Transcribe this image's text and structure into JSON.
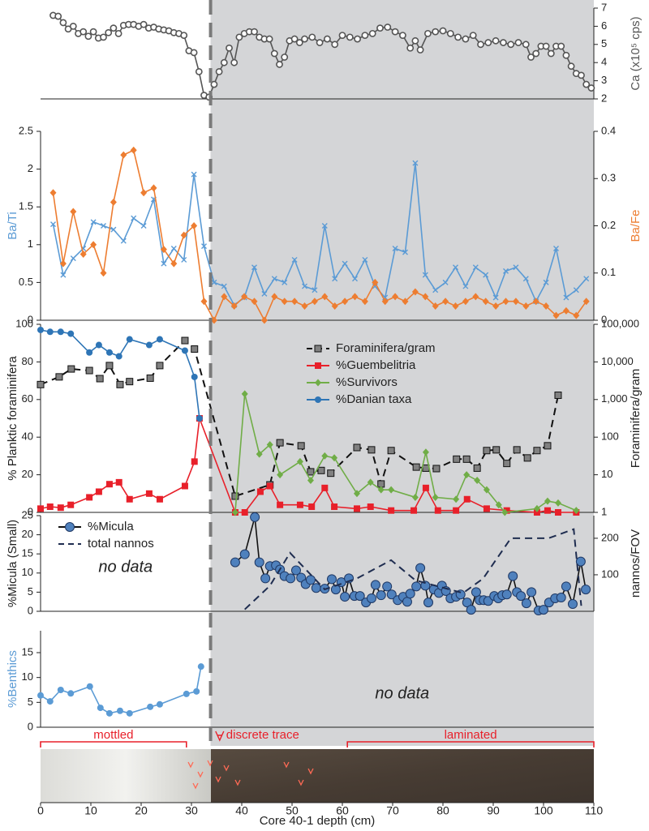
{
  "boundary_depth": 33.8,
  "core": {
    "zones": [
      {
        "label": "mottled",
        "from": 0,
        "to": 29
      },
      {
        "label": "discrete trace",
        "from": 34
      },
      {
        "label": "laminated",
        "from": 61,
        "to": 110
      }
    ]
  },
  "chart_data": [
    {
      "type": "line",
      "y_label": "Ca (x10⁵ cps)",
      "y_side": "right",
      "xlim": [
        0,
        110
      ],
      "ylim": [
        2,
        7
      ],
      "yticks": [
        2,
        3,
        4,
        5,
        6,
        7
      ],
      "x": [
        2.5,
        3.5,
        4.5,
        5.5,
        6.5,
        7.5,
        8.5,
        9.5,
        10.5,
        11.5,
        12.5,
        13.5,
        14.5,
        15.5,
        16.5,
        17.5,
        18.5,
        19.5,
        20.5,
        21.5,
        22.5,
        23.5,
        24.5,
        25.5,
        26.5,
        27.5,
        28.5,
        29.5,
        30.5,
        31.5,
        32.5,
        33.5,
        34.5,
        35.5,
        36.5,
        37.5,
        38.5,
        39.5,
        40.5,
        41.5,
        42.5,
        43.5,
        44.5,
        45.5,
        46.5,
        47.5,
        48.5,
        49.5,
        50.5,
        51.5,
        52.5,
        54,
        55.5,
        57,
        58.5,
        60,
        61.5,
        63,
        64.5,
        66,
        67.5,
        69,
        70.5,
        72,
        73.5,
        74.5,
        75.5,
        77,
        78.5,
        80,
        81.5,
        83,
        84.5,
        86,
        87.5,
        89,
        90.5,
        92,
        93.5,
        95,
        96.5,
        97.5,
        98.5,
        99.5,
        100.5,
        101.5,
        102.5,
        103.5,
        104.5,
        105.5,
        106.5,
        107.5,
        108.5,
        109.5
      ],
      "series": [
        {
          "color": "#555555",
          "marker": "circle-open",
          "values": [
            6.6,
            6.55,
            6.2,
            5.85,
            6.0,
            5.6,
            5.7,
            5.45,
            5.7,
            5.35,
            5.4,
            5.65,
            5.9,
            5.6,
            6.05,
            6.1,
            6.1,
            6.0,
            6.1,
            5.9,
            5.95,
            5.85,
            5.8,
            5.75,
            5.65,
            5.6,
            5.5,
            4.65,
            4.55,
            3.5,
            2.2,
            2.1,
            2.8,
            3.5,
            4.0,
            4.8,
            4.0,
            5.4,
            5.6,
            5.7,
            5.7,
            5.4,
            5.3,
            5.3,
            4.5,
            3.9,
            4.3,
            5.2,
            5.3,
            5.1,
            5.3,
            5.4,
            5.1,
            5.3,
            5.0,
            5.5,
            5.4,
            5.3,
            5.5,
            5.6,
            5.9,
            5.95,
            5.7,
            5.5,
            4.8,
            5.2,
            4.7,
            5.6,
            5.7,
            5.75,
            5.6,
            5.4,
            5.3,
            5.5,
            5.0,
            5.1,
            5.2,
            5.1,
            5.0,
            5.1,
            5.0,
            4.3,
            4.5,
            4.9,
            4.9,
            4.5,
            4.9,
            4.9,
            4.4,
            3.8,
            3.4,
            3.3,
            2.8,
            2.6
          ]
        }
      ]
    },
    {
      "type": "line",
      "xlim": [
        0,
        110
      ],
      "ylim": [
        0,
        2.5
      ],
      "yticks": [
        0,
        0.5,
        1,
        1.5,
        2,
        2.5
      ],
      "y2lim": [
        0,
        0.4
      ],
      "y2ticks": [
        0,
        0.1,
        0.2,
        0.3,
        0.4
      ],
      "x": [
        2.5,
        4.5,
        6.5,
        8.5,
        10.5,
        12.5,
        14.5,
        16.5,
        18.5,
        20.5,
        22.5,
        24.5,
        26.5,
        28.5,
        30.5,
        32.5,
        34.5,
        36.5,
        38.5,
        40.5,
        42.5,
        44.5,
        46.5,
        48.5,
        50.5,
        52.5,
        54.5,
        56.5,
        58.5,
        60.5,
        62.5,
        64.5,
        66.5,
        68.5,
        70.5,
        72.5,
        74.5,
        76.5,
        78.5,
        80.5,
        82.5,
        84.5,
        86.5,
        88.5,
        90.5,
        92.5,
        94.5,
        96.5,
        98.5,
        100.5,
        102.5,
        104.5,
        106.5,
        108.5
      ],
      "series": [
        {
          "name": "Ba/Ti",
          "color": "#5b9bd5",
          "marker": "x",
          "values": [
            1.27,
            0.6,
            0.82,
            0.95,
            1.3,
            1.25,
            1.2,
            1.05,
            1.35,
            1.25,
            1.6,
            0.75,
            0.95,
            0.8,
            1.93,
            0.98,
            0.5,
            0.45,
            0.2,
            0.3,
            0.7,
            0.35,
            0.55,
            0.5,
            0.8,
            0.45,
            0.4,
            1.25,
            0.55,
            0.75,
            0.55,
            0.8,
            0.45,
            0.3,
            0.95,
            0.9,
            2.08,
            0.6,
            0.4,
            0.5,
            0.7,
            0.45,
            0.7,
            0.6,
            0.3,
            0.65,
            0.7,
            0.55,
            0.25,
            0.5,
            0.95,
            0.3,
            0.4,
            0.55
          ]
        },
        {
          "name": "Ba/Fe",
          "color": "#ed7d31",
          "marker": "diamond",
          "axis": "y2",
          "values": [
            0.27,
            0.12,
            0.23,
            0.14,
            0.16,
            0.1,
            0.25,
            0.35,
            0.36,
            0.27,
            0.28,
            0.15,
            0.12,
            0.18,
            0.2,
            0.04,
            0.0,
            0.05,
            0.03,
            0.05,
            0.04,
            0.0,
            0.05,
            0.04,
            0.04,
            0.03,
            0.04,
            0.05,
            0.03,
            0.04,
            0.05,
            0.04,
            0.08,
            0.04,
            0.05,
            0.04,
            0.06,
            0.05,
            0.03,
            0.04,
            0.03,
            0.04,
            0.05,
            0.04,
            0.03,
            0.04,
            0.04,
            0.03,
            0.04,
            0.03,
            0.01,
            0.02,
            0.01,
            0.04
          ]
        }
      ]
    },
    {
      "type": "line",
      "y_label": "% Planktic foraminifera",
      "y2_label": "Foraminifera/gram",
      "legend": "upper center",
      "xlim": [
        0,
        110
      ],
      "ylim": [
        0,
        100
      ],
      "yticks": [
        0,
        20,
        40,
        60,
        80,
        100
      ],
      "y2lim": [
        1,
        100000
      ],
      "y2log": true,
      "y2ticks": [
        1,
        10,
        100,
        {
          "value": 1000,
          "label": "1,000"
        },
        {
          "value": 10000,
          "label": "10,000"
        },
        {
          "value": 100000,
          "label": "100,000"
        }
      ],
      "series": [
        {
          "name": "Foraminifera/gram",
          "color": "#808080",
          "line_color": "#111111",
          "dash": true,
          "marker": "square",
          "axis": "y2",
          "x": [
            0,
            3.7,
            6.1,
            9.7,
            11.8,
            13.7,
            15.8,
            17.7,
            21.8,
            23.7,
            28.7,
            30.6,
            38.7,
            45.6,
            47.6,
            51.8,
            53.7,
            55.8,
            57.7,
            62.9,
            65.8,
            67.7,
            69.7,
            74.7,
            76.6,
            78.7,
            82.7,
            84.7,
            86.8,
            88.7,
            90.6,
            92.7,
            94.7,
            96.8,
            98.7,
            100.8,
            102.9
          ],
          "values": [
            2500,
            4000,
            6500,
            5900,
            3600,
            8000,
            2500,
            3000,
            3700,
            8000,
            37000,
            22000,
            2.7,
            5.4,
            71,
            59,
            12,
            13,
            11,
            53,
            46,
            5.7,
            44,
            16,
            15,
            14.6,
            26,
            26,
            15,
            44,
            46,
            20,
            46,
            28,
            44,
            59,
            1300
          ]
        },
        {
          "name": "%Guembelitria",
          "color": "#e8202a",
          "marker": "square",
          "x": [
            0,
            1.9,
            4,
            6,
            9.7,
            11.6,
            13.7,
            15.6,
            17.7,
            21.6,
            23.7,
            28.7,
            30.6,
            31.6,
            38.7,
            40.6,
            43.7,
            45.6,
            47.6,
            51.6,
            53.9,
            56.5,
            58.4,
            62.9,
            65.6,
            69.7,
            74.2,
            76.6,
            79,
            82.6,
            84.8,
            88.7,
            92.7,
            98.7,
            100.8,
            102.9,
            106.5
          ],
          "values": [
            2,
            3,
            2.5,
            4,
            8,
            11,
            15,
            16,
            7,
            10,
            7,
            14,
            27,
            50,
            0,
            0,
            11,
            14,
            4,
            4,
            3,
            13,
            3,
            2,
            3,
            1,
            1,
            13,
            1,
            1,
            7,
            2,
            1,
            0,
            1,
            0,
            0
          ]
        },
        {
          "name": "%Survivors",
          "color": "#70ad47",
          "marker": "diamond",
          "x": [
            38.7,
            40.6,
            43.5,
            45.6,
            47.6,
            51.6,
            53.7,
            56.5,
            58.4,
            62.9,
            65.6,
            67.7,
            69.7,
            74.5,
            76.6,
            78.5,
            82.6,
            84.7,
            86.8,
            88.7,
            91.1,
            92.3,
            98.7,
            100.8,
            102.9,
            106.5
          ],
          "values": [
            0,
            63,
            31,
            36,
            20,
            27,
            17,
            30,
            29,
            10,
            16,
            12,
            12,
            8,
            32,
            8,
            7,
            20,
            17,
            12,
            4,
            0,
            2,
            6,
            5,
            1
          ]
        },
        {
          "name": "%Danian taxa",
          "color": "#2e75b6",
          "marker": "circle",
          "x": [
            0,
            1.9,
            4,
            6,
            9.7,
            11.6,
            13.7,
            15.6,
            17.7,
            21.6,
            23.7,
            28.7,
            30.6,
            31.6
          ],
          "values": [
            97,
            96,
            96,
            95,
            85,
            89,
            85,
            83,
            92,
            89,
            92,
            86,
            72,
            50
          ]
        }
      ]
    },
    {
      "type": "line",
      "y_label": "%Micula (Small)",
      "y2_label": "nannos/FOV",
      "annotation": "no data",
      "legend": "upper left",
      "xlim": [
        0,
        110
      ],
      "ylim": [
        0,
        25
      ],
      "yticks": [
        0,
        5,
        10,
        15,
        20,
        25
      ],
      "y2lim": [
        0,
        262
      ],
      "y2ticks": [
        100,
        200
      ],
      "series": [
        {
          "name": "%Micula",
          "color": "#4f81bd",
          "line_color": "#111111",
          "marker": "circle-big",
          "x": [
            38.7,
            40.6,
            42.6,
            43.5,
            44.7,
            45.6,
            46.8,
            47.6,
            48.5,
            49.7,
            50.8,
            51.8,
            52.7,
            53.7,
            54.8,
            56.5,
            57.9,
            58.7,
            59.8,
            60.5,
            61.3,
            62.4,
            63.5,
            64.7,
            65.8,
            66.6,
            67.7,
            68.9,
            69.8,
            71,
            72.1,
            72.9,
            73.5,
            74.7,
            75.5,
            76.5,
            77.1,
            78.2,
            79.2,
            79.8,
            80.6,
            81.5,
            82.6,
            83.5,
            84.8,
            85.6,
            86.6,
            87.3,
            88.1,
            89,
            90.2,
            91,
            91.8,
            92.7,
            93.9,
            94.7,
            95.5,
            96.6,
            97.6,
            99,
            100,
            101.1,
            102.3,
            103.5,
            104.5,
            105.8,
            107.4,
            108.4
          ],
          "values": [
            12.8,
            14.9,
            24.6,
            12.8,
            8.6,
            11.8,
            12,
            10.9,
            9.2,
            8.6,
            10.7,
            8.8,
            7.1,
            8.2,
            6.1,
            5.9,
            8.4,
            5.7,
            7.6,
            3.8,
            8.6,
            4,
            4,
            2.3,
            3.4,
            6.9,
            4.2,
            6.5,
            4.4,
            2.9,
            3.8,
            2.5,
            4.6,
            6.5,
            11.3,
            6.7,
            2.3,
            5.7,
            4.8,
            6.7,
            5.3,
            3.4,
            3.8,
            4.4,
            2.3,
            0.4,
            5,
            2.9,
            2.9,
            2.7,
            4,
            3.4,
            4.2,
            4.4,
            9.2,
            5,
            4,
            2.1,
            5,
            0.2,
            0.4,
            2.3,
            3.4,
            3.6,
            6.5,
            1.9,
            13,
            5.7
          ]
        },
        {
          "name": "total nannos",
          "color": "#1f2d50",
          "dash": true,
          "marker": "none",
          "axis": "y2",
          "x": [
            40.6,
            45.6,
            49.6,
            56.5,
            62.9,
            69.7,
            74.5,
            84,
            88,
            93.5,
            97,
            101,
            106,
            107.5
          ],
          "values": [
            5,
            70,
            160,
            60,
            90,
            140,
            85,
            50,
            90,
            200,
            200,
            200,
            225,
            15
          ]
        }
      ]
    },
    {
      "type": "line",
      "y_label": "%Benthics",
      "annotation": "no data",
      "x_label": "Core 40-1 depth (cm)",
      "xlim": [
        0,
        110
      ],
      "xticks": [
        0,
        10,
        20,
        30,
        40,
        50,
        60,
        70,
        80,
        90,
        100,
        110
      ],
      "ylim": [
        0,
        15
      ],
      "yticks": [
        0,
        5,
        10,
        15
      ],
      "series": [
        {
          "color": "#5b9bd5",
          "marker": "circle",
          "x": [
            0,
            1.9,
            4,
            6,
            9.8,
            11.9,
            13.7,
            15.8,
            17.7,
            21.8,
            23.7,
            29,
            31,
            31.9
          ],
          "values": [
            6.4,
            5.2,
            7.5,
            6.8,
            8.2,
            3.9,
            2.8,
            3.3,
            2.8,
            4.1,
            4.6,
            6.7,
            7.2,
            12.2
          ]
        }
      ]
    }
  ]
}
